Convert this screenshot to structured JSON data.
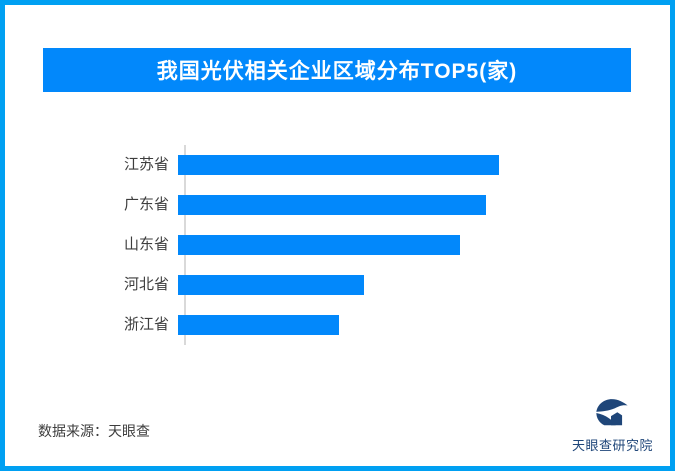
{
  "page": {
    "background": "#FFFFFF",
    "frame_border_color": "#00A0F2"
  },
  "header": {
    "title": "我国光伏相关企业区域分布TOP5(家)",
    "background": "#0288FB",
    "text_color": "#FFFFFF"
  },
  "chart_data": {
    "type": "bar",
    "orientation": "horizontal",
    "title": "我国光伏相关企业区域分布TOP5(家)",
    "categories": [
      "江苏省",
      "广东省",
      "山东省",
      "河北省",
      "浙江省"
    ],
    "values": [
      100,
      96,
      88,
      58,
      50
    ],
    "value_note": "relative bar lengths in % of longest bar; no numeric data labels are shown in the image",
    "xlabel": "",
    "ylabel": "",
    "value_labels_shown": false,
    "grid": false,
    "legend": false,
    "bar_color": "#0288FB",
    "axis_line_color": "#D9D9D9",
    "label_color": "#3D3D3D"
  },
  "footer": {
    "source_text": "数据来源：天眼查"
  },
  "logo": {
    "text": "天眼查研究院",
    "color": "#1F4679",
    "mark_icon": "tianyancha-eye-logo"
  }
}
